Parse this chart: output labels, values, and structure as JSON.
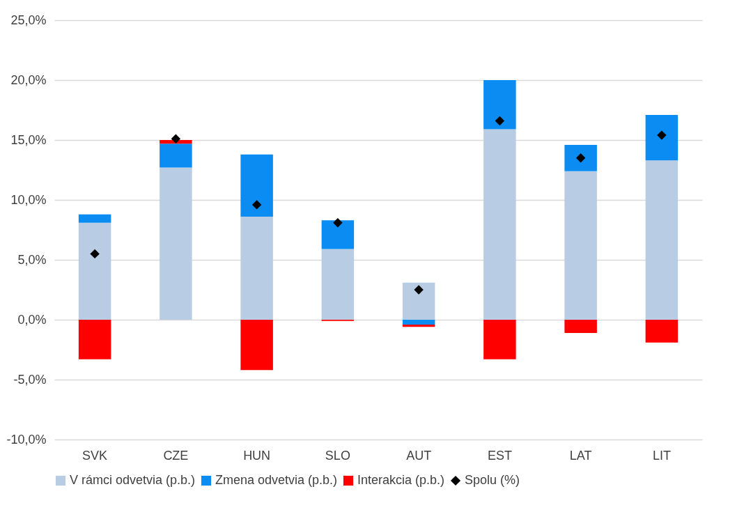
{
  "chart_data": {
    "type": "bar",
    "stacked": true,
    "categories": [
      "SVK",
      "CZE",
      "HUN",
      "SLO",
      "AUT",
      "EST",
      "LAT",
      "LIT"
    ],
    "series": [
      {
        "name": "V rámci odvetvia (p.b.)",
        "color": "#b8cce4",
        "values": [
          8.1,
          12.7,
          8.6,
          5.9,
          3.1,
          15.9,
          12.4,
          13.3
        ]
      },
      {
        "name": "Zmena odvetvia (p.b.)",
        "color": "#0a8cf2",
        "values": [
          0.7,
          2.0,
          5.2,
          2.4,
          -0.4,
          4.1,
          2.2,
          3.8
        ]
      },
      {
        "name": "Interakcia (p.b.)",
        "color": "#ff0000",
        "values": [
          -3.3,
          0.3,
          -4.2,
          -0.1,
          -0.2,
          -3.3,
          -1.1,
          -1.9
        ]
      },
      {
        "name": "Spolu (%)",
        "type": "scatter",
        "marker": "diamond",
        "color": "#000000",
        "values": [
          5.5,
          15.1,
          9.6,
          8.1,
          2.5,
          16.6,
          13.5,
          15.4
        ]
      }
    ],
    "ylim": [
      -10,
      25
    ],
    "yticks": [
      {
        "value": -10,
        "label": "-10,0%"
      },
      {
        "value": -5,
        "label": "-5,0%"
      },
      {
        "value": 0,
        "label": "0,0%"
      },
      {
        "value": 5,
        "label": "5,0%"
      },
      {
        "value": 10,
        "label": "10,0%"
      },
      {
        "value": 15,
        "label": "15,0%"
      },
      {
        "value": 20,
        "label": "20,0%"
      },
      {
        "value": 25,
        "label": "25,0%"
      }
    ],
    "grid": "y",
    "legend": "bottom"
  }
}
